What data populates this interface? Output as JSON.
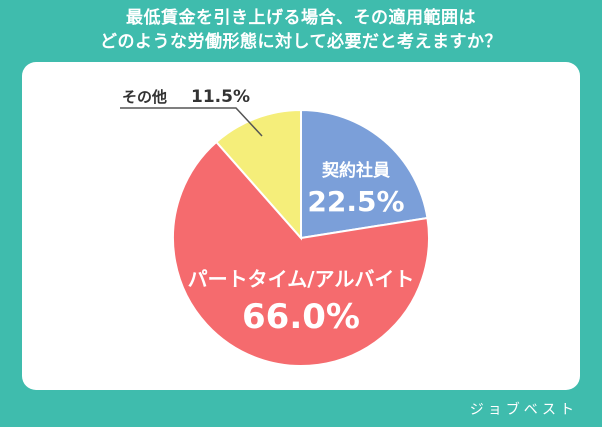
{
  "title": {
    "line1": "最低賃金を引き上げる場合、その適用範囲は",
    "line2": "どのような労働形態に対して必要だと考えますか？"
  },
  "brand": "ジョブベスト",
  "colors": {
    "background": "#3fbcad",
    "card": "#ffffff",
    "contract": "#7b9fd9",
    "parttime": "#f56b6e",
    "other": "#f5ee7a"
  },
  "chart_data": {
    "type": "pie",
    "title": "最低賃金を引き上げる場合、その適用範囲はどのような労働形態に対して必要だと考えますか？",
    "unit": "%",
    "slices": [
      {
        "label": "契約社員",
        "value": 22.5,
        "value_label": "22.5%",
        "color": "#7b9fd9"
      },
      {
        "label": "パートタイム/アルバイト",
        "value": 66.0,
        "value_label": "66.0%",
        "color": "#f56b6e"
      },
      {
        "label": "その他",
        "value": 11.5,
        "value_label": "11.5%",
        "color": "#f5ee7a"
      }
    ]
  }
}
